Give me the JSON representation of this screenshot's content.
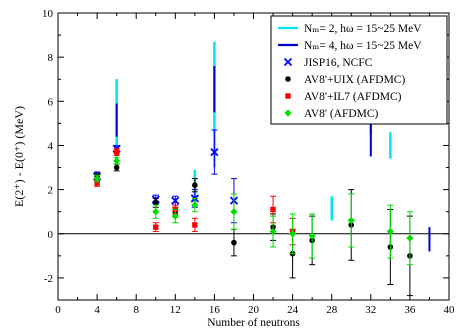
{
  "chart_data": {
    "type": "scatter",
    "xlabel": "Number of neutrons",
    "ylabel": "E(2⁺) - E(0⁺)  (MeV)",
    "xlim": [
      0,
      40
    ],
    "ylim": [
      -3,
      10
    ],
    "x_ticks": [
      0,
      2,
      4,
      6,
      8,
      10,
      12,
      14,
      16,
      18,
      20,
      22,
      24,
      26,
      28,
      30,
      32,
      34,
      36,
      38,
      40
    ],
    "x_tick_labels": [
      "0",
      "4",
      "8",
      "12",
      "16",
      "20",
      "24",
      "28",
      "32",
      "36",
      "40"
    ],
    "y_ticks": [
      -3,
      -2,
      -1,
      0,
      1,
      2,
      3,
      4,
      5,
      6,
      7,
      8,
      9,
      10
    ],
    "y_tick_labels": [
      "-2",
      "0",
      "2",
      "4",
      "6",
      "8",
      "10"
    ],
    "zero_line": true,
    "legend_position": "top-right",
    "legend": [
      {
        "label": "Nₘ= 2, hω = 15~25 MeV",
        "marker": "line",
        "color": "#00e5ee"
      },
      {
        "label": "Nₘ= 4, hω = 15~25 MeV",
        "marker": "line",
        "color": "#0000cc"
      },
      {
        "label": "JISP16, NCFC",
        "marker": "cross",
        "color": "#0000ff"
      },
      {
        "label": "AV8'+UIX (AFDMC)",
        "marker": "circle",
        "color": "#000000"
      },
      {
        "label": "AV8'+IL7 (AFDMC)",
        "marker": "square",
        "color": "#ff0000"
      },
      {
        "label": "AV8' (AFDMC)",
        "marker": "diamond",
        "color": "#00dd00"
      }
    ],
    "series": [
      {
        "marker": "range",
        "color": "#00e5ee",
        "width": 2.5,
        "points": [
          {
            "x": 6,
            "ylo": 3.0,
            "yhi": 7.0
          },
          {
            "x": 14,
            "ylo": 1.2,
            "yhi": 2.9
          },
          {
            "x": 16,
            "ylo": 3.0,
            "yhi": 8.7
          },
          {
            "x": 28,
            "ylo": 0.6,
            "yhi": 1.7
          },
          {
            "x": 32,
            "ylo": 4.5,
            "yhi": 7.6
          },
          {
            "x": 34,
            "ylo": 3.4,
            "yhi": 4.6
          }
        ]
      },
      {
        "marker": "range",
        "color": "#0000cc",
        "width": 2,
        "points": [
          {
            "x": 6,
            "ylo": 4.4,
            "yhi": 5.9
          },
          {
            "x": 16,
            "ylo": 5.5,
            "yhi": 7.6
          },
          {
            "x": 32,
            "ylo": 3.5,
            "yhi": 7.0
          },
          {
            "x": 38,
            "ylo": -0.8,
            "yhi": 0.3
          }
        ]
      },
      {
        "marker": "cross",
        "color": "#0000ff",
        "points": [
          {
            "x": 4,
            "y": 2.6,
            "ylo": 2.4,
            "yhi": 2.8
          },
          {
            "x": 6,
            "y": 3.85,
            "ylo": 3.7,
            "yhi": 4.0
          },
          {
            "x": 10,
            "y": 1.55,
            "ylo": 1.35,
            "yhi": 1.75
          },
          {
            "x": 12,
            "y": 1.5,
            "ylo": 1.3,
            "yhi": 1.7
          },
          {
            "x": 14,
            "y": 1.6,
            "ylo": 1.2,
            "yhi": 2.0
          },
          {
            "x": 16,
            "y": 3.7,
            "ylo": 2.7,
            "yhi": 4.7
          },
          {
            "x": 18,
            "y": 1.5,
            "ylo": 0.5,
            "yhi": 2.5
          }
        ]
      },
      {
        "marker": "circle",
        "color": "#000000",
        "points": [
          {
            "x": 4,
            "y": 2.6,
            "ylo": 2.45,
            "yhi": 2.75
          },
          {
            "x": 6,
            "y": 3.0,
            "ylo": 2.85,
            "yhi": 3.15
          },
          {
            "x": 10,
            "y": 1.4,
            "ylo": 1.2,
            "yhi": 1.6
          },
          {
            "x": 12,
            "y": 1.0,
            "ylo": 0.8,
            "yhi": 1.2
          },
          {
            "x": 14,
            "y": 2.2,
            "ylo": 1.9,
            "yhi": 2.5
          },
          {
            "x": 18,
            "y": -0.4,
            "ylo": -1.0,
            "yhi": 0.2
          },
          {
            "x": 22,
            "y": 0.3,
            "ylo": -0.3,
            "yhi": 0.9
          },
          {
            "x": 24,
            "y": -0.9,
            "ylo": -2.0,
            "yhi": 0.2
          },
          {
            "x": 26,
            "y": -0.3,
            "ylo": -1.4,
            "yhi": 0.8
          },
          {
            "x": 30,
            "y": 0.4,
            "ylo": -1.2,
            "yhi": 2.0
          },
          {
            "x": 34,
            "y": -0.6,
            "ylo": -2.3,
            "yhi": 1.1
          },
          {
            "x": 36,
            "y": -1.0,
            "ylo": -2.8,
            "yhi": 0.8
          }
        ]
      },
      {
        "marker": "square",
        "color": "#ff0000",
        "points": [
          {
            "x": 4,
            "y": 2.3,
            "ylo": 2.15,
            "yhi": 2.45
          },
          {
            "x": 6,
            "y": 3.7,
            "ylo": 3.55,
            "yhi": 3.85
          },
          {
            "x": 10,
            "y": 0.3,
            "ylo": 0.1,
            "yhi": 0.5
          },
          {
            "x": 12,
            "y": 1.1,
            "ylo": 0.9,
            "yhi": 1.3
          },
          {
            "x": 14,
            "y": 0.4,
            "ylo": 0.1,
            "yhi": 0.7
          },
          {
            "x": 22,
            "y": 1.1,
            "ylo": 0.5,
            "yhi": 1.7
          },
          {
            "x": 24,
            "y": 0.1,
            "ylo": -0.5,
            "yhi": 0.7
          }
        ]
      },
      {
        "marker": "diamond",
        "color": "#00dd00",
        "points": [
          {
            "x": 4,
            "y": 2.5,
            "ylo": 2.35,
            "yhi": 2.65
          },
          {
            "x": 6,
            "y": 3.3,
            "ylo": 3.15,
            "yhi": 3.45
          },
          {
            "x": 10,
            "y": 1.0,
            "ylo": 0.7,
            "yhi": 1.3
          },
          {
            "x": 12,
            "y": 0.8,
            "ylo": 0.5,
            "yhi": 1.1
          },
          {
            "x": 14,
            "y": 1.3,
            "ylo": 1.0,
            "yhi": 1.6
          },
          {
            "x": 18,
            "y": 1.0,
            "ylo": 0.2,
            "yhi": 1.8
          },
          {
            "x": 22,
            "y": 0.1,
            "ylo": -0.6,
            "yhi": 0.8
          },
          {
            "x": 24,
            "y": 0.0,
            "ylo": -0.9,
            "yhi": 0.9
          },
          {
            "x": 26,
            "y": -0.1,
            "ylo": -1.1,
            "yhi": 0.9
          },
          {
            "x": 30,
            "y": 0.6,
            "ylo": -0.6,
            "yhi": 1.8
          },
          {
            "x": 34,
            "y": 0.1,
            "ylo": -1.1,
            "yhi": 1.3
          },
          {
            "x": 36,
            "y": -0.2,
            "ylo": -1.4,
            "yhi": 1.0
          }
        ]
      }
    ]
  }
}
